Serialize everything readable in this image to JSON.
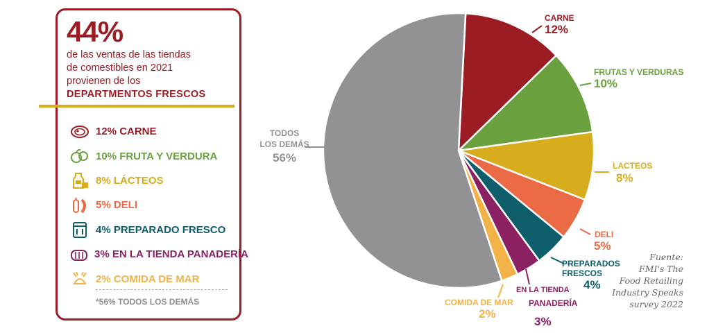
{
  "headline": {
    "pct": "44%",
    "line1": "de las ventas de las tiendas",
    "line2": "de comestibles en 2021",
    "line3": "provienen de los",
    "line4": "DEPARTMENTOS FRESCOS"
  },
  "legend": [
    {
      "text": "12% CARNE",
      "color": "#9b1c23",
      "icon": "meat-icon"
    },
    {
      "text": "10% FRUTA Y VERDURA",
      "color": "#6aa13e",
      "icon": "produce-icon"
    },
    {
      "text": "8% LÁCTEOS",
      "color": "#d7ac1d",
      "icon": "dairy-icon"
    },
    {
      "text": "5% DELI",
      "color": "#ea6a45",
      "icon": "deli-icon"
    },
    {
      "text": "4% PREPARADO FRESCO",
      "color": "#0d5d6a",
      "icon": "prepared-icon"
    },
    {
      "text": "3% EN LA TIENDA PANADERÍA",
      "color": "#8b2063",
      "icon": "bakery-icon"
    },
    {
      "text": "2% COMIDA DE MAR",
      "color": "#f2b247",
      "icon": "seafood-icon"
    }
  ],
  "footnote": "*56% TODOS LOS DEMÁS",
  "source": {
    "line1": "Fuente:",
    "line2": "FMI's The",
    "line3": "Food Retailing",
    "line4": "Industry Speaks",
    "line5": "survey 2022"
  },
  "chart_data": {
    "type": "pie",
    "slices": [
      {
        "label": "CARNE",
        "value": 12,
        "value_label": "12%",
        "color": "#9b1c23"
      },
      {
        "label": "FRUTAS Y VERDURAS",
        "value": 10,
        "value_label": "10%",
        "color": "#6aa13e"
      },
      {
        "label": "LACTEOS",
        "value": 8,
        "value_label": "8%",
        "color": "#d7ac1d"
      },
      {
        "label": "DELI",
        "value": 5,
        "value_label": "5%",
        "color": "#ea6a45"
      },
      {
        "label": "PREPARADOS FRESCOS",
        "value": 4,
        "value_label": "4%",
        "color": "#0d5d6a"
      },
      {
        "label": "EN LA TIENDA PANADERÍA",
        "value": 3,
        "value_label": "3%",
        "color": "#8b2063"
      },
      {
        "label": "COMIDA DE MAR",
        "value": 2,
        "value_label": "2%",
        "color": "#f2b247"
      },
      {
        "label": "TODOS LOS DEMÁS",
        "value": 56,
        "value_label": "56%",
        "color": "#929295"
      }
    ]
  }
}
